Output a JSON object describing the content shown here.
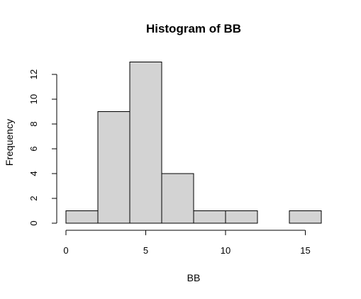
{
  "chart_data": {
    "type": "bar",
    "title": "Histogram of BB",
    "xlabel": "BB",
    "ylabel": "Frequency",
    "bins": [
      {
        "from": 0,
        "to": 2,
        "count": 1
      },
      {
        "from": 2,
        "to": 4,
        "count": 9
      },
      {
        "from": 4,
        "to": 6,
        "count": 13
      },
      {
        "from": 6,
        "to": 8,
        "count": 4
      },
      {
        "from": 8,
        "to": 10,
        "count": 1
      },
      {
        "from": 10,
        "to": 12,
        "count": 1
      },
      {
        "from": 12,
        "to": 14,
        "count": 0
      },
      {
        "from": 14,
        "to": 16,
        "count": 1
      }
    ],
    "x_ticks": [
      0,
      5,
      10,
      15
    ],
    "y_ticks": [
      0,
      2,
      4,
      6,
      8,
      10,
      12
    ],
    "xlim": [
      0,
      16
    ],
    "ylim": [
      0,
      13
    ],
    "grid": false,
    "colors": {
      "bar_fill": "#d3d3d3",
      "bar_stroke": "#000000"
    }
  }
}
